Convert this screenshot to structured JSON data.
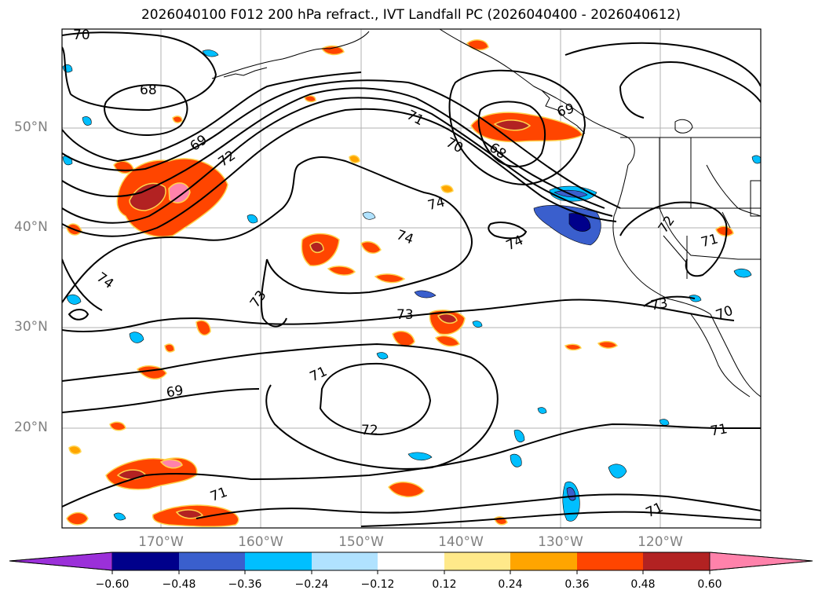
{
  "title": "2026040100 F012 200 hPa refract., IVT Landfall PC (2026040400 - 2026040612)",
  "axes": {
    "lat_labels": [
      "50°N",
      "40°N",
      "30°N",
      "20°N"
    ],
    "lon_labels": [
      "170°W",
      "160°W",
      "150°W",
      "140°W",
      "130°W",
      "120°W"
    ]
  },
  "contour_labels": [
    "70",
    "68",
    "69",
    "72",
    "71",
    "70",
    "69",
    "68",
    "74",
    "74",
    "74",
    "72",
    "71",
    "74",
    "73",
    "73",
    "73",
    "70",
    "71",
    "69",
    "72",
    "71",
    "71",
    "71"
  ],
  "colorbar": {
    "ticks": [
      "−0.60",
      "−0.48",
      "−0.36",
      "−0.24",
      "−0.12",
      "0.12",
      "0.24",
      "0.36",
      "0.48",
      "0.60"
    ],
    "colors": [
      "#9b30d9",
      "#00008b",
      "#3a5fcd",
      "#00bfff",
      "#b0e2ff",
      "#ffffff",
      "#ffe98a",
      "#ffa500",
      "#ff4500",
      "#b22222",
      "#ff82ab",
      "#ff82ab"
    ]
  }
}
